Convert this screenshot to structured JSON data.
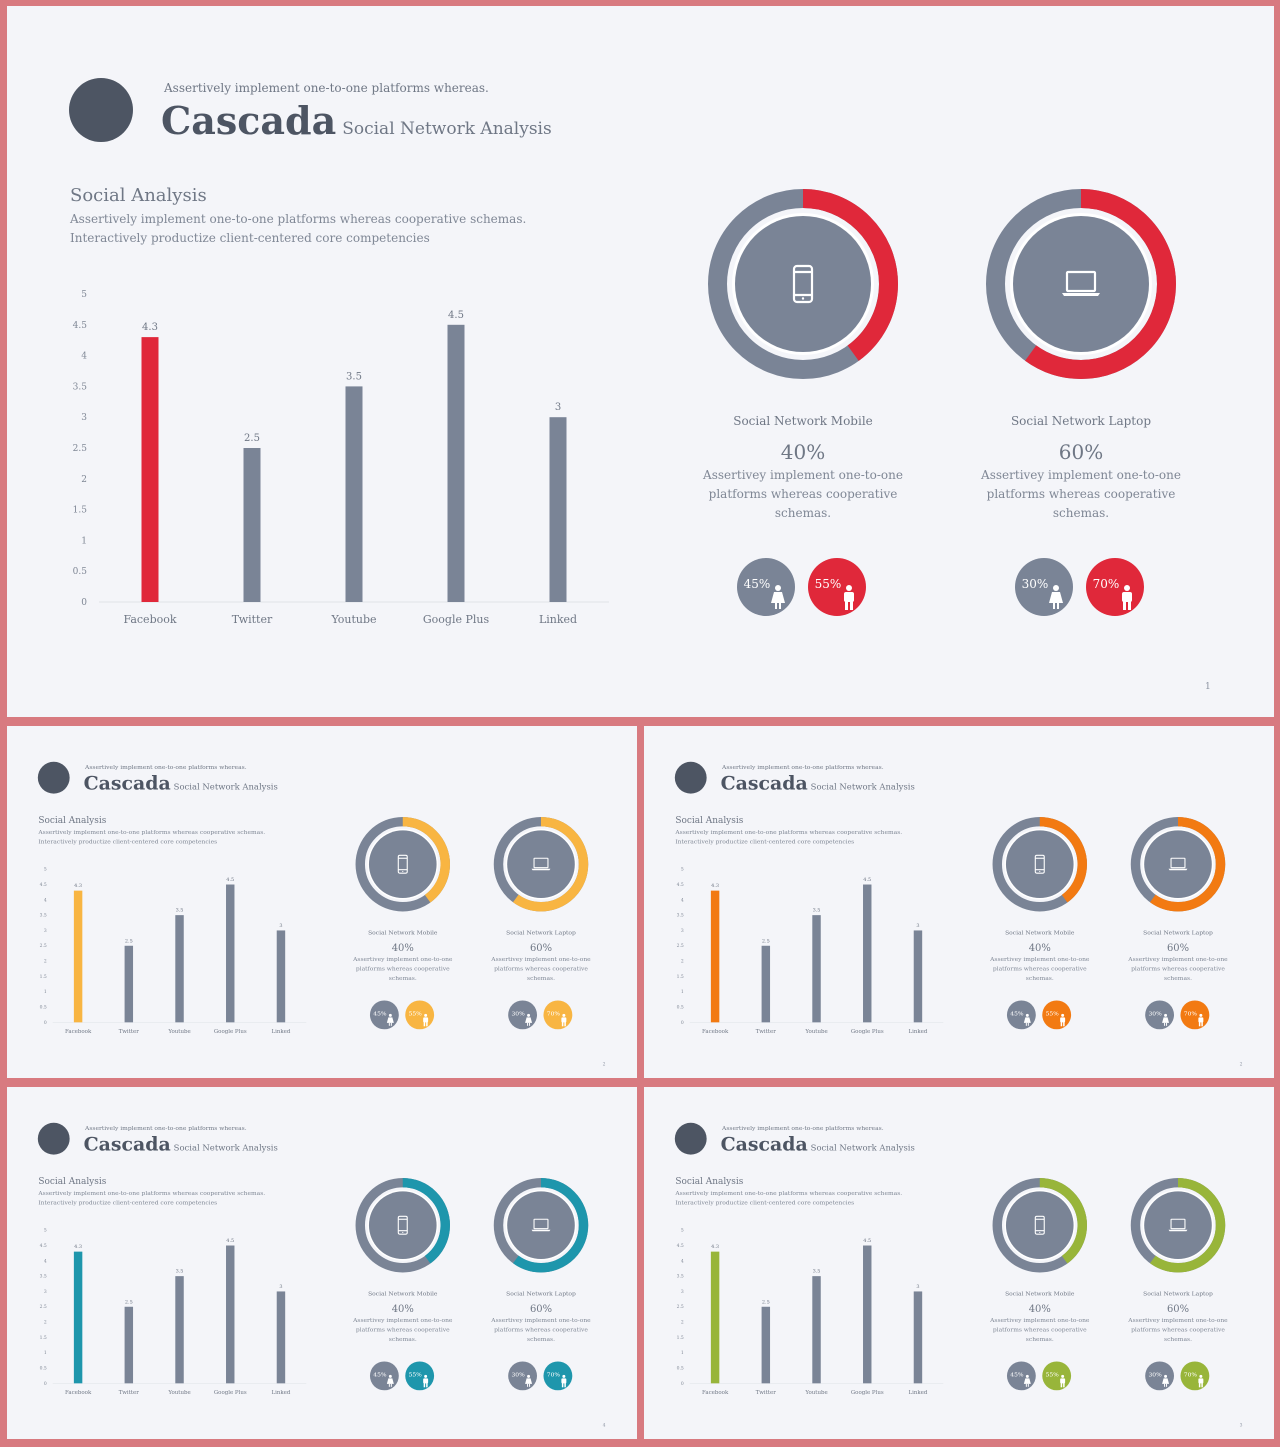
{
  "header": {
    "tagline": "Assertively implement one-to-one platforms whereas.",
    "brand": "Cascada",
    "brand_subtitle": "Social Network Analysis"
  },
  "section": {
    "title": "Social Analysis",
    "description": "Assertively implement one-to-one platforms whereas cooperative schemas. Interactively productize client-centered core competencies"
  },
  "chart_data": {
    "type": "bar",
    "categories": [
      "Facebook",
      "Twitter",
      "Youtube",
      "Google Plus",
      "Linked"
    ],
    "values": [
      4.3,
      2.5,
      3.5,
      4.5,
      3
    ],
    "value_labels": [
      "4.3",
      "2.5",
      "3.5",
      "4.5",
      "3"
    ],
    "ylim": [
      0,
      5
    ],
    "yticks": [
      "0",
      "0.5",
      "1",
      "1.5",
      "2",
      "2.5",
      "3",
      "3.5",
      "4",
      "4.5",
      "5"
    ],
    "highlight_index": 0,
    "grid": false,
    "base_color": "#7a8496"
  },
  "donuts": [
    {
      "label": "Social Network Mobile",
      "percent_text": "40%",
      "accent_fraction": 0.4,
      "description": "Assertivey implement one-to-one platforms whereas cooperative schemas.",
      "icon": "mobile-phone-icon",
      "gender": [
        {
          "text": "45%",
          "icon": "female-icon",
          "accent": false
        },
        {
          "text": "55%",
          "icon": "male-icon",
          "accent": true
        }
      ]
    },
    {
      "label": "Social Network Laptop",
      "percent_text": "60%",
      "accent_fraction": 0.6,
      "description": "Assertivey implement one-to-one platforms whereas cooperative schemas.",
      "icon": "laptop-icon",
      "gender": [
        {
          "text": "30%",
          "icon": "female-icon",
          "accent": false
        },
        {
          "text": "70%",
          "icon": "male-icon",
          "accent": true
        }
      ]
    }
  ],
  "slides": [
    {
      "id": "slide-main",
      "accent": "#e0283a",
      "page": "1"
    },
    {
      "id": "slide-2",
      "accent": "#f8b542",
      "page": "2"
    },
    {
      "id": "slide-3",
      "accent": "#f27a12",
      "page": "2"
    },
    {
      "id": "slide-4",
      "accent": "#1e96ac",
      "page": "4"
    },
    {
      "id": "slide-5",
      "accent": "#98b53a",
      "page": "3"
    }
  ],
  "colors": {
    "dark": "#4d5563",
    "gray": "#7a8496",
    "background": "#f4f5f9"
  }
}
